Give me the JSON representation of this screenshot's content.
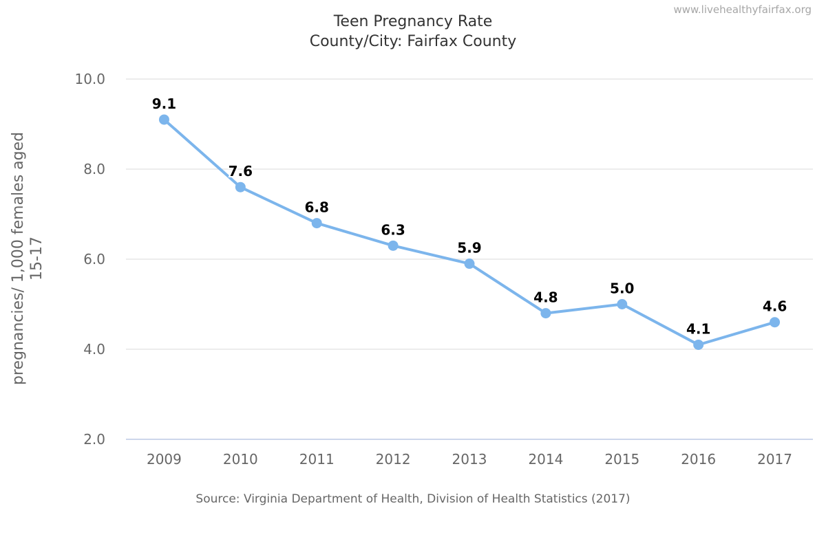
{
  "credit": "www.livehealthyfairfax.org",
  "chart_data": {
    "type": "line",
    "title": "Teen Pregnancy Rate",
    "subtitle": "County/City: Fairfax County",
    "ylabel_lines": [
      "pregnancies/ 1,000 females aged",
      "15-17"
    ],
    "xlabel": "",
    "categories": [
      "2009",
      "2010",
      "2011",
      "2012",
      "2013",
      "2014",
      "2015",
      "2016",
      "2017"
    ],
    "series": [
      {
        "values": [
          9.1,
          7.6,
          6.8,
          6.3,
          5.9,
          4.8,
          5.0,
          4.1,
          4.6
        ]
      }
    ],
    "data_labels": [
      "9.1",
      "7.6",
      "6.8",
      "6.3",
      "5.9",
      "4.8",
      "5.0",
      "4.1",
      "4.6"
    ],
    "ylim": [
      2,
      10
    ],
    "yticks": [
      2,
      4,
      6,
      8,
      10
    ],
    "ytick_labels": [
      "2.0",
      "4.0",
      "6.0",
      "8.0",
      "10.0"
    ],
    "grid": true,
    "legend": "none",
    "source": "Source: Virginia Department of Health, Division of Health Statistics (2017)",
    "colors": {
      "line": "#7cb5ec",
      "grid": "#e6e6e6",
      "axis": "#ccd6eb",
      "text": "#333333",
      "axis_text": "#666666"
    }
  }
}
